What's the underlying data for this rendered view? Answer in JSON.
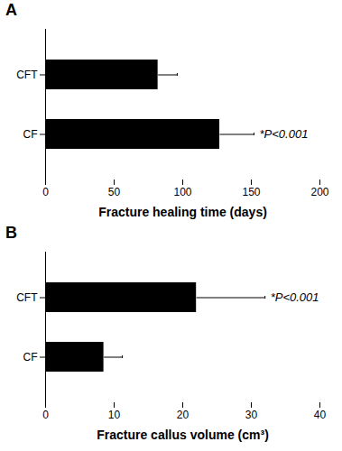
{
  "chart_data": [
    {
      "type": "bar",
      "orientation": "horizontal",
      "title": "A",
      "x_label": "Fracture healing time (days)",
      "categories": [
        "CFT",
        "CF"
      ],
      "values": [
        82,
        127
      ],
      "errors": [
        14,
        25
      ],
      "color": "#000000",
      "xlim": [
        0,
        200
      ],
      "xticks": [
        0,
        50,
        100,
        150,
        200
      ],
      "annotations": [
        {
          "text": "*P<0.001",
          "category": "CF"
        }
      ]
    },
    {
      "type": "bar",
      "orientation": "horizontal",
      "title": "B",
      "x_label": "Fracture callus volume (cm³)",
      "categories": [
        "CFT",
        "CF"
      ],
      "values": [
        22,
        8.5
      ],
      "errors": [
        10,
        2.7
      ],
      "color": "#000000",
      "xlim": [
        0,
        40
      ],
      "xticks": [
        0,
        10,
        20,
        30,
        40
      ],
      "annotations": [
        {
          "text": "*P<0.001",
          "category": "CFT"
        }
      ]
    }
  ]
}
